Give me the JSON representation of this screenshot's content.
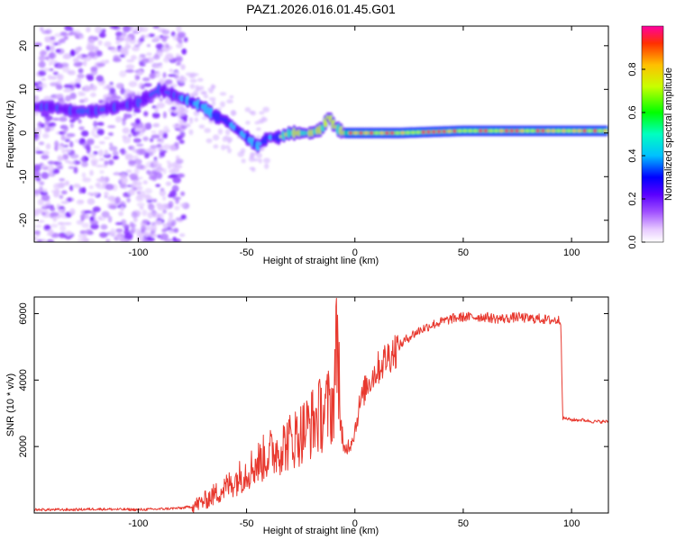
{
  "figure": {
    "title": "PAZ1.2026.016.01.45.G01"
  },
  "colors": {
    "axis": "#000000",
    "snr_line": "#e8392f",
    "background": "#ffffff"
  },
  "chart_data": [
    {
      "type": "heatmap",
      "title": "PAZ1.2026.016.01.45.G01",
      "xlabel": "Height of straight line (km)",
      "ylabel": "Frequency (Hz)",
      "xlim": [
        -148,
        117
      ],
      "ylim": [
        -25,
        24.5
      ],
      "xticks": [
        -100,
        -50,
        0,
        50,
        100
      ],
      "xtick_labels": [
        "-100",
        "-50",
        "0",
        "50",
        "100"
      ],
      "yticks": [
        -20,
        -10,
        0,
        10,
        20
      ],
      "ytick_labels": [
        "-20",
        "-10",
        "0",
        "10",
        "20"
      ],
      "colorbar": {
        "label": "Normalized spectral amplitude",
        "range": [
          0,
          1
        ],
        "ticks": [
          0,
          0.2,
          0.4,
          0.6,
          0.8
        ],
        "tick_labels": [
          "0.0",
          "0.2",
          "0.4",
          "0.6",
          "0.8"
        ],
        "colormap": "rainbow (magenta-blue-cyan-green-yellow-red)"
      },
      "ridge": {
        "x": [
          -148,
          -140,
          -130,
          -120,
          -110,
          -100,
          -90,
          -85,
          -80,
          -75,
          -70,
          -65,
          -60,
          -55,
          -50,
          -45,
          -40,
          -35,
          -30,
          -25,
          -20,
          -15,
          -12,
          -10,
          -8,
          -5,
          0,
          20,
          50,
          80,
          117
        ],
        "y": [
          6,
          6,
          5,
          5,
          6,
          7,
          10,
          9,
          8,
          7,
          6,
          4,
          3,
          1,
          -1,
          -3,
          -1,
          -1,
          0,
          0,
          0,
          1,
          4,
          2,
          1,
          0,
          0,
          0,
          0.5,
          0.5,
          0.5
        ]
      },
      "notes": "Noise-dominated region for heights below about -80 km; strong narrow signal near 0 Hz above about -10 km."
    },
    {
      "type": "line",
      "xlabel": "Height of straight line (km)",
      "ylabel": "SNR (10 * v/v)",
      "xlim": [
        -148,
        117
      ],
      "ylim": [
        0,
        6500
      ],
      "xticks": [
        -100,
        -50,
        0,
        50,
        100
      ],
      "xtick_labels": [
        "-100",
        "-50",
        "0",
        "50",
        "100"
      ],
      "yticks": [
        2000,
        4000,
        6000
      ],
      "ytick_labels": [
        "2000",
        "4000",
        "6000"
      ],
      "series": [
        {
          "name": "SNR",
          "x": [
            -148,
            -140,
            -130,
            -120,
            -110,
            -100,
            -90,
            -80,
            -75,
            -70,
            -65,
            -60,
            -55,
            -50,
            -45,
            -40,
            -35,
            -30,
            -25,
            -20,
            -15,
            -10,
            -8,
            -6,
            -5,
            -2,
            0,
            2,
            5,
            10,
            15,
            20,
            25,
            30,
            35,
            40,
            45,
            50,
            55,
            60,
            65,
            70,
            75,
            80,
            85,
            90,
            95,
            96,
            97,
            100,
            105,
            110,
            117
          ],
          "values": [
            100,
            100,
            100,
            120,
            110,
            100,
            120,
            150,
            200,
            350,
            550,
            750,
            1000,
            1250,
            1500,
            1750,
            1950,
            2150,
            2400,
            2700,
            3000,
            3300,
            5500,
            1800,
            1900,
            2100,
            2500,
            3200,
            3800,
            4300,
            4700,
            5000,
            5300,
            5500,
            5650,
            5750,
            5850,
            5900,
            5900,
            5900,
            5850,
            5850,
            5900,
            5850,
            5850,
            5800,
            5800,
            2850,
            2850,
            2800,
            2800,
            2750,
            2750
          ]
        }
      ]
    }
  ]
}
